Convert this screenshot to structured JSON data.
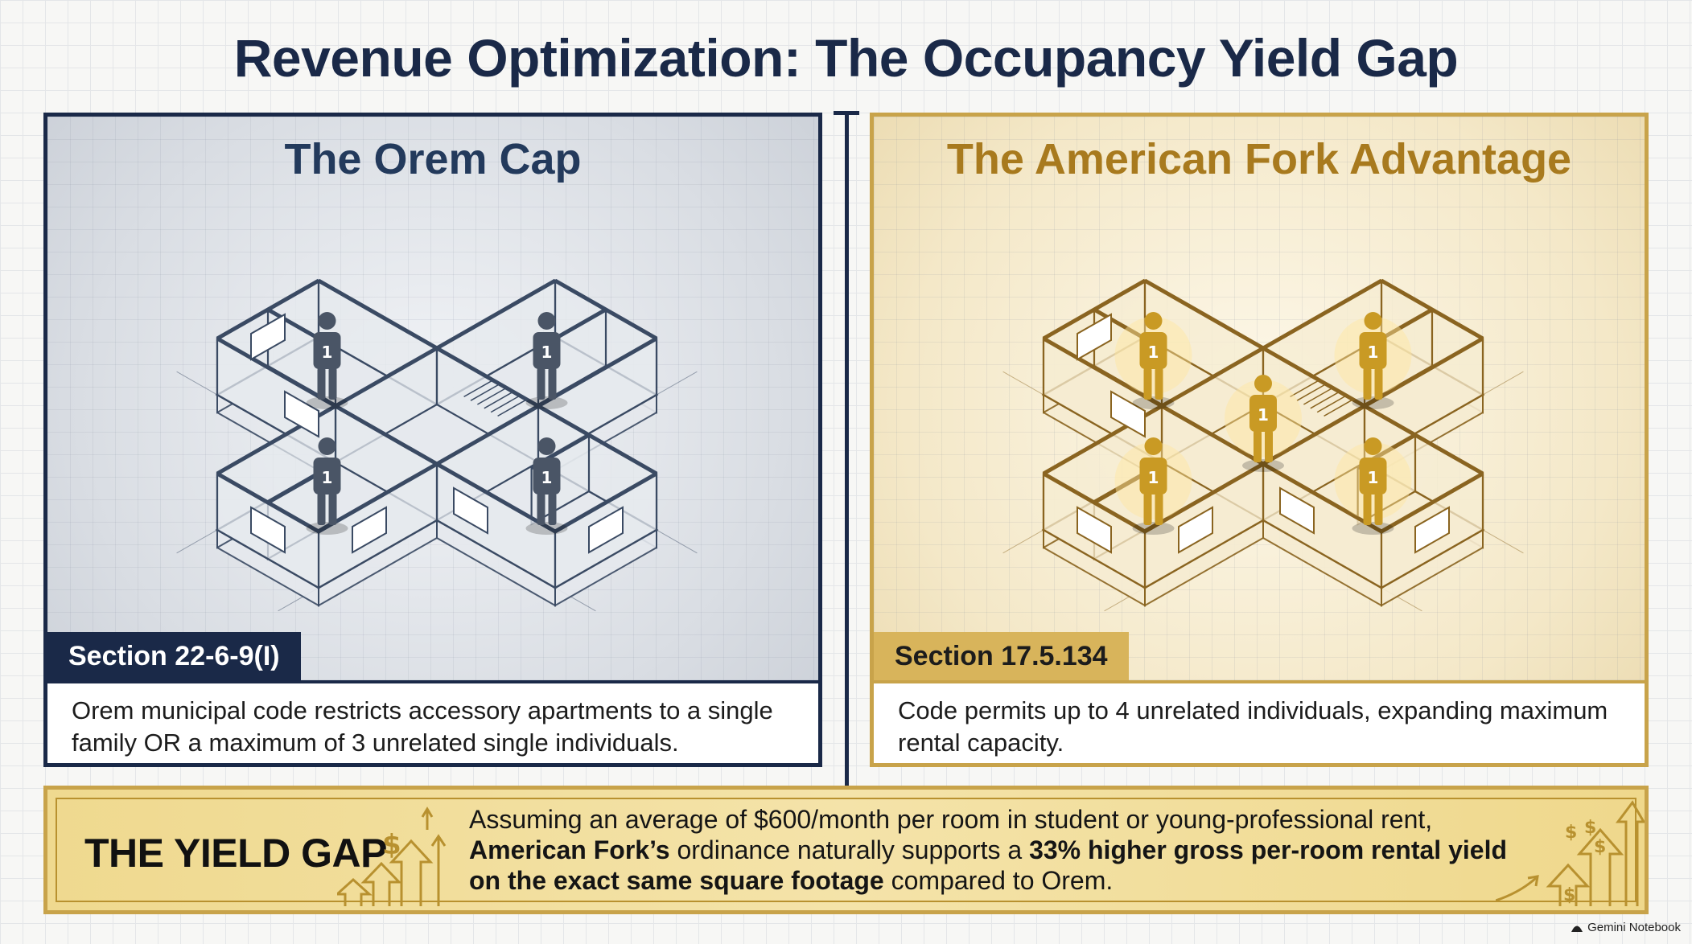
{
  "title": "Revenue Optimization: The Occupancy Yield Gap",
  "left": {
    "title": "The Orem Cap",
    "section": "Section 22-6-9(I)",
    "description": "Orem municipal code restricts accessory apartments to a single family OR a maximum of 3 unrelated single individuals.",
    "occupant_label": "1",
    "occupant_count": 4,
    "colors": {
      "line": "#3a4a63",
      "fill": "#e6e9ee",
      "person": "#4a5566"
    }
  },
  "right": {
    "title": "The American Fork Advantage",
    "section": "Section 17.5.134",
    "description": "Code permits up to 4 unrelated individuals, expanding maximum rental capacity.",
    "occupant_label": "1",
    "occupant_count": 5,
    "colors": {
      "line": "#8a6420",
      "fill": "#f6ecd2",
      "person": "#c99a24"
    }
  },
  "yield": {
    "label": "THE YIELD GAP",
    "text_1": "Assuming an average of $600/month per room in student or young-professional rent,",
    "text_2_bold": "American Fork’s",
    "text_2": " ordinance naturally supports a ",
    "text_2_bold_b": "33% higher gross per-room rental yield",
    "text_3_bold": "on the exact same square footage",
    "text_3": " compared to Orem."
  },
  "watermark": "Gemini Notebook"
}
